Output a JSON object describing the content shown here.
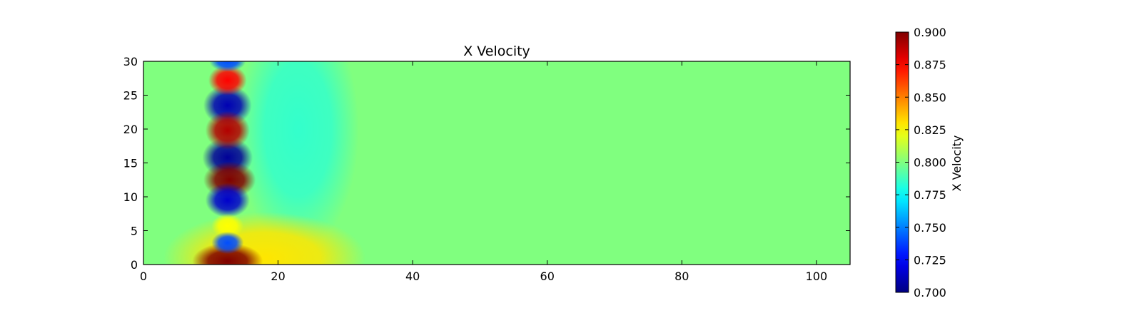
{
  "chart_data": {
    "type": "heatmap",
    "title": "X Velocity",
    "xlabel": "",
    "ylabel": "",
    "xlim": [
      0,
      105
    ],
    "ylim": [
      0,
      30
    ],
    "x_ticks": [
      0,
      20,
      40,
      60,
      80,
      100
    ],
    "y_ticks": [
      0,
      5,
      10,
      15,
      20,
      25,
      30
    ],
    "x_tick_labels": [
      "0",
      "20",
      "40",
      "60",
      "80",
      "100"
    ],
    "y_tick_labels": [
      "0",
      "5",
      "10",
      "15",
      "20",
      "25",
      "30"
    ],
    "colormap": "jet",
    "background_value": 0.8,
    "colorbar": {
      "label": "X Velocity",
      "vmin": 0.7,
      "vmax": 0.9,
      "ticks": [
        0.7,
        0.725,
        0.75,
        0.775,
        0.8,
        0.825,
        0.85,
        0.875,
        0.9
      ],
      "tick_labels": [
        "0.700",
        "0.725",
        "0.750",
        "0.775",
        "0.800",
        "0.825",
        "0.850",
        "0.875",
        "0.900"
      ]
    },
    "features": [
      {
        "x": 12.5,
        "y": 0.5,
        "value": 0.9,
        "rx": 3.5,
        "ry": 1.8
      },
      {
        "x": 12.5,
        "y": 3.2,
        "value": 0.74,
        "rx": 1.6,
        "ry": 1.1
      },
      {
        "x": 12.5,
        "y": 5.7,
        "value": 0.825,
        "rx": 1.6,
        "ry": 1.2
      },
      {
        "x": 12.5,
        "y": 9.5,
        "value": 0.715,
        "rx": 2.2,
        "ry": 1.7
      },
      {
        "x": 12.8,
        "y": 12.5,
        "value": 0.9,
        "rx": 2.6,
        "ry": 1.8
      },
      {
        "x": 12.5,
        "y": 15.8,
        "value": 0.705,
        "rx": 2.5,
        "ry": 2.0
      },
      {
        "x": 12.5,
        "y": 19.8,
        "value": 0.89,
        "rx": 2.2,
        "ry": 1.9
      },
      {
        "x": 12.5,
        "y": 23.5,
        "value": 0.71,
        "rx": 2.4,
        "ry": 2.0
      },
      {
        "x": 12.5,
        "y": 27.2,
        "value": 0.875,
        "rx": 1.9,
        "ry": 1.5
      },
      {
        "x": 12.5,
        "y": 30.0,
        "value": 0.74,
        "rx": 1.8,
        "ry": 1.0
      },
      {
        "x": 18.0,
        "y": 1.0,
        "value": 0.83,
        "rx": 10.0,
        "ry": 4.5
      },
      {
        "x": 23.0,
        "y": 20.0,
        "value": 0.785,
        "rx": 6.0,
        "ry": 12.0
      }
    ]
  }
}
